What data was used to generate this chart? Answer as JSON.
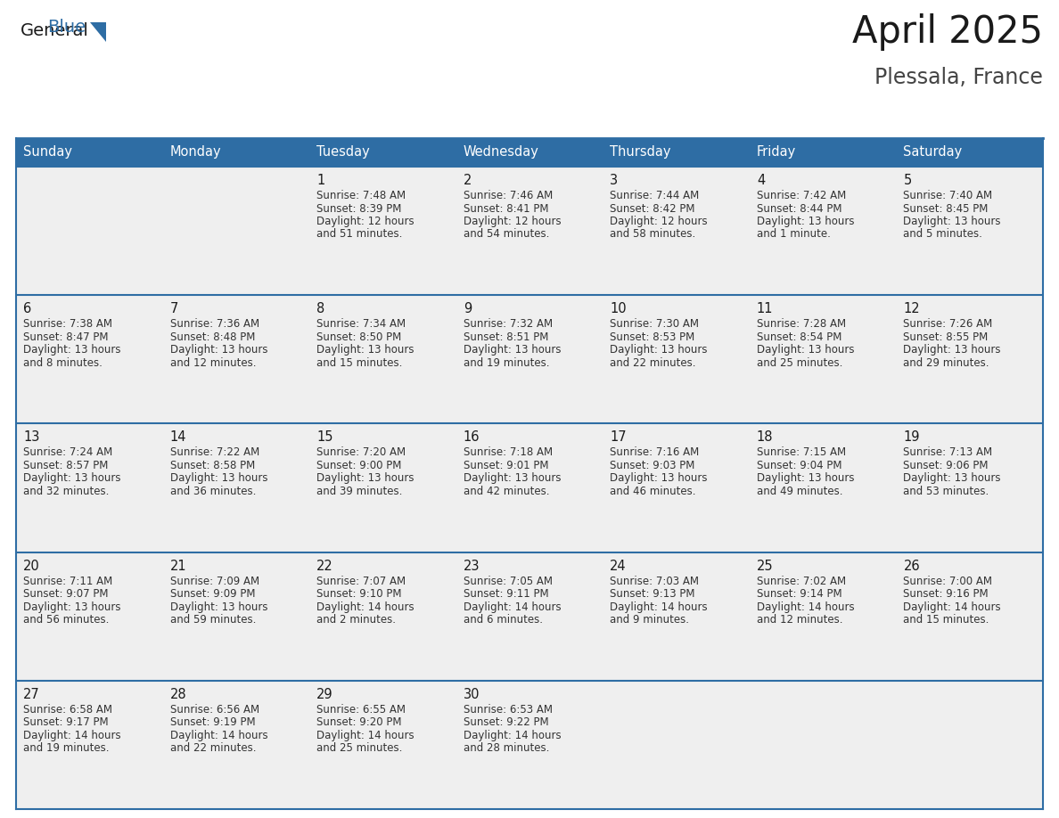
{
  "title": "April 2025",
  "subtitle": "Plessala, France",
  "header_bg_color": "#2E6DA4",
  "header_text_color": "#FFFFFF",
  "cell_bg_color": "#EFEFEF",
  "border_color": "#2E6DA4",
  "text_color": "#1a1a1a",
  "info_color": "#333333",
  "day_headers": [
    "Sunday",
    "Monday",
    "Tuesday",
    "Wednesday",
    "Thursday",
    "Friday",
    "Saturday"
  ],
  "weeks": [
    [
      {
        "day": "",
        "info": ""
      },
      {
        "day": "",
        "info": ""
      },
      {
        "day": "1",
        "info": "Sunrise: 7:48 AM\nSunset: 8:39 PM\nDaylight: 12 hours\nand 51 minutes."
      },
      {
        "day": "2",
        "info": "Sunrise: 7:46 AM\nSunset: 8:41 PM\nDaylight: 12 hours\nand 54 minutes."
      },
      {
        "day": "3",
        "info": "Sunrise: 7:44 AM\nSunset: 8:42 PM\nDaylight: 12 hours\nand 58 minutes."
      },
      {
        "day": "4",
        "info": "Sunrise: 7:42 AM\nSunset: 8:44 PM\nDaylight: 13 hours\nand 1 minute."
      },
      {
        "day": "5",
        "info": "Sunrise: 7:40 AM\nSunset: 8:45 PM\nDaylight: 13 hours\nand 5 minutes."
      }
    ],
    [
      {
        "day": "6",
        "info": "Sunrise: 7:38 AM\nSunset: 8:47 PM\nDaylight: 13 hours\nand 8 minutes."
      },
      {
        "day": "7",
        "info": "Sunrise: 7:36 AM\nSunset: 8:48 PM\nDaylight: 13 hours\nand 12 minutes."
      },
      {
        "day": "8",
        "info": "Sunrise: 7:34 AM\nSunset: 8:50 PM\nDaylight: 13 hours\nand 15 minutes."
      },
      {
        "day": "9",
        "info": "Sunrise: 7:32 AM\nSunset: 8:51 PM\nDaylight: 13 hours\nand 19 minutes."
      },
      {
        "day": "10",
        "info": "Sunrise: 7:30 AM\nSunset: 8:53 PM\nDaylight: 13 hours\nand 22 minutes."
      },
      {
        "day": "11",
        "info": "Sunrise: 7:28 AM\nSunset: 8:54 PM\nDaylight: 13 hours\nand 25 minutes."
      },
      {
        "day": "12",
        "info": "Sunrise: 7:26 AM\nSunset: 8:55 PM\nDaylight: 13 hours\nand 29 minutes."
      }
    ],
    [
      {
        "day": "13",
        "info": "Sunrise: 7:24 AM\nSunset: 8:57 PM\nDaylight: 13 hours\nand 32 minutes."
      },
      {
        "day": "14",
        "info": "Sunrise: 7:22 AM\nSunset: 8:58 PM\nDaylight: 13 hours\nand 36 minutes."
      },
      {
        "day": "15",
        "info": "Sunrise: 7:20 AM\nSunset: 9:00 PM\nDaylight: 13 hours\nand 39 minutes."
      },
      {
        "day": "16",
        "info": "Sunrise: 7:18 AM\nSunset: 9:01 PM\nDaylight: 13 hours\nand 42 minutes."
      },
      {
        "day": "17",
        "info": "Sunrise: 7:16 AM\nSunset: 9:03 PM\nDaylight: 13 hours\nand 46 minutes."
      },
      {
        "day": "18",
        "info": "Sunrise: 7:15 AM\nSunset: 9:04 PM\nDaylight: 13 hours\nand 49 minutes."
      },
      {
        "day": "19",
        "info": "Sunrise: 7:13 AM\nSunset: 9:06 PM\nDaylight: 13 hours\nand 53 minutes."
      }
    ],
    [
      {
        "day": "20",
        "info": "Sunrise: 7:11 AM\nSunset: 9:07 PM\nDaylight: 13 hours\nand 56 minutes."
      },
      {
        "day": "21",
        "info": "Sunrise: 7:09 AM\nSunset: 9:09 PM\nDaylight: 13 hours\nand 59 minutes."
      },
      {
        "day": "22",
        "info": "Sunrise: 7:07 AM\nSunset: 9:10 PM\nDaylight: 14 hours\nand 2 minutes."
      },
      {
        "day": "23",
        "info": "Sunrise: 7:05 AM\nSunset: 9:11 PM\nDaylight: 14 hours\nand 6 minutes."
      },
      {
        "day": "24",
        "info": "Sunrise: 7:03 AM\nSunset: 9:13 PM\nDaylight: 14 hours\nand 9 minutes."
      },
      {
        "day": "25",
        "info": "Sunrise: 7:02 AM\nSunset: 9:14 PM\nDaylight: 14 hours\nand 12 minutes."
      },
      {
        "day": "26",
        "info": "Sunrise: 7:00 AM\nSunset: 9:16 PM\nDaylight: 14 hours\nand 15 minutes."
      }
    ],
    [
      {
        "day": "27",
        "info": "Sunrise: 6:58 AM\nSunset: 9:17 PM\nDaylight: 14 hours\nand 19 minutes."
      },
      {
        "day": "28",
        "info": "Sunrise: 6:56 AM\nSunset: 9:19 PM\nDaylight: 14 hours\nand 22 minutes."
      },
      {
        "day": "29",
        "info": "Sunrise: 6:55 AM\nSunset: 9:20 PM\nDaylight: 14 hours\nand 25 minutes."
      },
      {
        "day": "30",
        "info": "Sunrise: 6:53 AM\nSunset: 9:22 PM\nDaylight: 14 hours\nand 28 minutes."
      },
      {
        "day": "",
        "info": ""
      },
      {
        "day": "",
        "info": ""
      },
      {
        "day": "",
        "info": ""
      }
    ]
  ]
}
